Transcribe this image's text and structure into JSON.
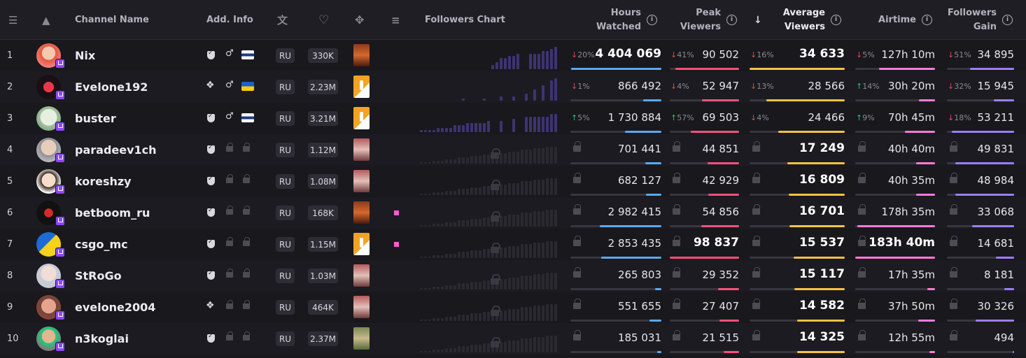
{
  "header": {
    "channel_name": "Channel Name",
    "add_info": "Add. Info",
    "followers_chart": "Followers Chart",
    "hours_watched": [
      "Hours",
      "Watched"
    ],
    "peak_viewers": [
      "Peak",
      "Viewers"
    ],
    "average_viewers": [
      "Average",
      "Viewers"
    ],
    "airtime": "Airtime",
    "followers_gain": [
      "Followers",
      "Gain"
    ],
    "sort_arrow": "↓",
    "info_glyph": "i"
  },
  "colors": {
    "hours": "#5aa9f0",
    "peak": "#ff4f7b",
    "avg": "#f5c242",
    "air": "#ff7ad9",
    "gain": "#9c7dff"
  },
  "rows": [
    {
      "rank": "1",
      "name": "Nix",
      "partner": "shield",
      "gender": "♂",
      "flag": "fi",
      "lang": "RU",
      "followers": "330K",
      "game": "dota",
      "dot": false,
      "locked": false,
      "hours": {
        "pct": "20%",
        "dir": "down",
        "value": "4 404 069",
        "frac": 0.99,
        "bold": true
      },
      "peak": {
        "pct": "41%",
        "dir": "down",
        "value": "90 502",
        "frac": 0.92,
        "bold": false
      },
      "avg": {
        "pct": "16%",
        "dir": "down",
        "value": "34 633",
        "frac": 1.0,
        "bold": true
      },
      "air": {
        "pct": "5%",
        "dir": "down",
        "value": "127h 10m",
        "frac": 0.7,
        "bold": false
      },
      "gain": {
        "pct": "51%",
        "dir": "down",
        "value": "34 895",
        "frac": 0.66,
        "bold": false
      },
      "chart": [
        0,
        0,
        0,
        0,
        0,
        0,
        0,
        0,
        0,
        0,
        0,
        0,
        0,
        0,
        0,
        0,
        0,
        2,
        3,
        5,
        5,
        6,
        6,
        7,
        0,
        0,
        7,
        7,
        7,
        8,
        8,
        9,
        10
      ]
    },
    {
      "rank": "2",
      "name": "Evelone192",
      "partner": "hand",
      "gender": "♂",
      "flag": "ua",
      "lang": "RU",
      "followers": "2.23M",
      "game": "cs",
      "dot": false,
      "locked": false,
      "hours": {
        "pct": "1%",
        "dir": "down",
        "value": "866 492",
        "frac": 0.2,
        "bold": false
      },
      "peak": {
        "pct": "4%",
        "dir": "down",
        "value": "52 947",
        "frac": 0.54,
        "bold": false
      },
      "avg": {
        "pct": "13%",
        "dir": "down",
        "value": "28 566",
        "frac": 0.82,
        "bold": false
      },
      "air": {
        "pct": "14%",
        "dir": "up",
        "value": "30h 20m",
        "frac": 0.2,
        "bold": false
      },
      "gain": {
        "pct": "32%",
        "dir": "down",
        "value": "15 945",
        "frac": 0.3,
        "bold": false
      },
      "chart": [
        0,
        0,
        0,
        0,
        0,
        0,
        0,
        0,
        0,
        0,
        1,
        0,
        0,
        0,
        0,
        1,
        0,
        0,
        0,
        2,
        0,
        0,
        2,
        0,
        0,
        3,
        0,
        5,
        0,
        7,
        0,
        9,
        10
      ]
    },
    {
      "rank": "3",
      "name": "buster",
      "partner": "shield",
      "gender": "♂",
      "flag": "fi",
      "lang": "RU",
      "followers": "3.21M",
      "game": "cs",
      "dot": false,
      "locked": false,
      "hours": {
        "pct": "5%",
        "dir": "up",
        "value": "1 730 884",
        "frac": 0.4,
        "bold": false
      },
      "peak": {
        "pct": "57%",
        "dir": "up",
        "value": "69 503",
        "frac": 0.7,
        "bold": false
      },
      "avg": {
        "pct": "4%",
        "dir": "down",
        "value": "24 466",
        "frac": 0.7,
        "bold": false
      },
      "air": {
        "pct": "9%",
        "dir": "up",
        "value": "70h 45m",
        "frac": 0.38,
        "bold": false
      },
      "gain": {
        "pct": "18%",
        "dir": "down",
        "value": "53 211",
        "frac": 0.93,
        "bold": false
      },
      "chart": [
        1,
        1,
        1,
        1,
        2,
        2,
        2,
        2,
        3,
        3,
        3,
        4,
        4,
        4,
        4,
        4,
        5,
        0,
        0,
        5,
        0,
        0,
        6,
        0,
        0,
        7,
        7,
        7,
        7,
        7,
        7,
        8,
        8
      ]
    },
    {
      "rank": "4",
      "name": "paradeev1ch",
      "partner": "shield",
      "gender": "",
      "flag": "",
      "lang": "RU",
      "followers": "1.12M",
      "game": "just",
      "dot": false,
      "locked": true,
      "hours": {
        "value": "701 441",
        "frac": 0.18,
        "bold": false
      },
      "peak": {
        "value": "44 851",
        "frac": 0.45,
        "bold": false
      },
      "avg": {
        "value": "17 249",
        "frac": 0.6,
        "bold": true
      },
      "air": {
        "value": "40h 40m",
        "frac": 0.24,
        "bold": false
      },
      "gain": {
        "value": "49 831",
        "frac": 0.88,
        "bold": false
      }
    },
    {
      "rank": "5",
      "name": "koreshzy",
      "partner": "shield",
      "gender": "",
      "flag": "",
      "lang": "RU",
      "followers": "1.08M",
      "game": "just",
      "dot": false,
      "locked": true,
      "hours": {
        "value": "682 127",
        "frac": 0.17,
        "bold": false
      },
      "peak": {
        "value": "42 929",
        "frac": 0.44,
        "bold": false
      },
      "avg": {
        "value": "16 809",
        "frac": 0.59,
        "bold": true
      },
      "air": {
        "value": "40h 35m",
        "frac": 0.24,
        "bold": false
      },
      "gain": {
        "value": "48 984",
        "frac": 0.87,
        "bold": false
      }
    },
    {
      "rank": "6",
      "name": "betboom_ru",
      "partner": "shield",
      "gender": "",
      "flag": "",
      "lang": "RU",
      "followers": "168K",
      "game": "dota",
      "dot": true,
      "locked": true,
      "hours": {
        "value": "2 982 415",
        "frac": 0.68,
        "bold": false
      },
      "peak": {
        "value": "54 856",
        "frac": 0.55,
        "bold": false
      },
      "avg": {
        "value": "16 701",
        "frac": 0.58,
        "bold": true
      },
      "air": {
        "value": "178h 35m",
        "frac": 0.97,
        "bold": false
      },
      "gain": {
        "value": "33 068",
        "frac": 0.62,
        "bold": false
      }
    },
    {
      "rank": "7",
      "name": "csgo_mc",
      "partner": "shield",
      "gender": "",
      "flag": "",
      "lang": "RU",
      "followers": "1.15M",
      "game": "cs",
      "dot": true,
      "locked": true,
      "hours": {
        "value": "2 853 435",
        "frac": 0.66,
        "bold": false
      },
      "peak": {
        "value": "98 837",
        "frac": 1.0,
        "bold": true
      },
      "avg": {
        "value": "15 537",
        "frac": 0.54,
        "bold": true
      },
      "air": {
        "value": "183h 40m",
        "frac": 1.0,
        "bold": true
      },
      "gain": {
        "value": "14 681",
        "frac": 0.27,
        "bold": false
      }
    },
    {
      "rank": "8",
      "name": "StRoGo",
      "partner": "shield",
      "gender": "",
      "flag": "",
      "lang": "RU",
      "followers": "1.03M",
      "game": "just",
      "dot": false,
      "locked": true,
      "hours": {
        "value": "265 803",
        "frac": 0.07,
        "bold": false
      },
      "peak": {
        "value": "29 352",
        "frac": 0.3,
        "bold": false
      },
      "avg": {
        "value": "15 117",
        "frac": 0.53,
        "bold": true
      },
      "air": {
        "value": "17h 35m",
        "frac": 0.1,
        "bold": false
      },
      "gain": {
        "value": "8 181",
        "frac": 0.15,
        "bold": false
      }
    },
    {
      "rank": "9",
      "name": "evelone2004",
      "partner": "hand",
      "gender": "",
      "flag": "",
      "lang": "RU",
      "followers": "464K",
      "game": "just",
      "dot": false,
      "locked": true,
      "hours": {
        "value": "551 655",
        "frac": 0.13,
        "bold": false
      },
      "peak": {
        "value": "27 407",
        "frac": 0.28,
        "bold": false
      },
      "avg": {
        "value": "14 582",
        "frac": 0.5,
        "bold": true
      },
      "air": {
        "value": "37h 50m",
        "frac": 0.21,
        "bold": false
      },
      "gain": {
        "value": "30 326",
        "frac": 0.57,
        "bold": false
      }
    },
    {
      "rank": "10",
      "name": "n3koglai",
      "partner": "shield",
      "gender": "",
      "flag": "",
      "lang": "RU",
      "followers": "2.37M",
      "game": "gta",
      "dot": false,
      "locked": true,
      "hours": {
        "value": "185 031",
        "frac": 0.05,
        "bold": false
      },
      "peak": {
        "value": "21 515",
        "frac": 0.22,
        "bold": false
      },
      "avg": {
        "value": "14 325",
        "frac": 0.5,
        "bold": true
      },
      "air": {
        "value": "12h 55m",
        "frac": 0.07,
        "bold": false
      },
      "gain": {
        "value": "494",
        "frac": 0.01,
        "bold": false
      }
    }
  ]
}
